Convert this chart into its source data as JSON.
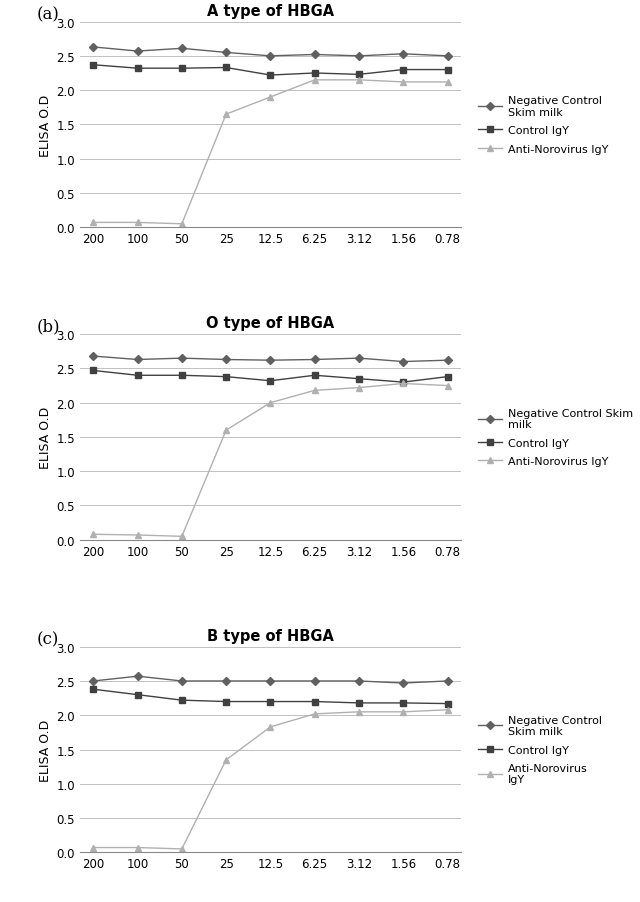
{
  "x_labels": [
    "200",
    "100",
    "50",
    "25",
    "12.5",
    "6.25",
    "3.12",
    "1.56",
    "0.78"
  ],
  "x_vals": [
    0,
    1,
    2,
    3,
    4,
    5,
    6,
    7,
    8
  ],
  "panel_a": {
    "title": "A type of HBGA",
    "neg_ctrl": [
      2.63,
      2.57,
      2.61,
      2.55,
      2.5,
      2.52,
      2.5,
      2.53,
      2.5
    ],
    "ctrl_igy": [
      2.37,
      2.32,
      2.32,
      2.33,
      2.22,
      2.25,
      2.23,
      2.3,
      2.3
    ],
    "anti_nov": [
      0.07,
      0.07,
      0.05,
      1.65,
      1.9,
      2.15,
      2.15,
      2.12,
      2.12
    ],
    "legend_labels": [
      "Negative Control\nSkim milk",
      "Control IgY",
      "Anti-Norovirus IgY"
    ]
  },
  "panel_b": {
    "title": "O type of HBGA",
    "neg_ctrl": [
      2.68,
      2.63,
      2.65,
      2.63,
      2.62,
      2.63,
      2.65,
      2.6,
      2.62
    ],
    "ctrl_igy": [
      2.47,
      2.4,
      2.4,
      2.38,
      2.32,
      2.4,
      2.35,
      2.3,
      2.38
    ],
    "anti_nov": [
      0.08,
      0.07,
      0.05,
      1.6,
      2.0,
      2.18,
      2.22,
      2.28,
      2.25
    ],
    "legend_labels": [
      "Negative Control Skim\nmilk",
      "Control IgY",
      "Anti-Norovirus IgY"
    ]
  },
  "panel_c": {
    "title": "B type of HBGA",
    "neg_ctrl": [
      2.5,
      2.57,
      2.5,
      2.5,
      2.5,
      2.5,
      2.5,
      2.47,
      2.5
    ],
    "ctrl_igy": [
      2.38,
      2.3,
      2.22,
      2.2,
      2.2,
      2.2,
      2.18,
      2.18,
      2.17
    ],
    "anti_nov": [
      0.07,
      0.07,
      0.05,
      1.35,
      1.83,
      2.02,
      2.05,
      2.05,
      2.08
    ],
    "legend_labels": [
      "Negative Control\nSkim milk",
      "Control IgY",
      "Anti-Norovirus\nIgY"
    ]
  },
  "color_neg": "#606060",
  "color_ctrl": "#404040",
  "color_anti": "#b0b0b0",
  "ylim": [
    0.0,
    3.0
  ],
  "yticks": [
    0.0,
    0.5,
    1.0,
    1.5,
    2.0,
    2.5,
    3.0
  ],
  "ylabel": "ELISA O.D",
  "panel_labels": [
    "(a)",
    "(b)",
    "(c)"
  ],
  "figsize": [
    6.4,
    9.03
  ],
  "dpi": 100
}
